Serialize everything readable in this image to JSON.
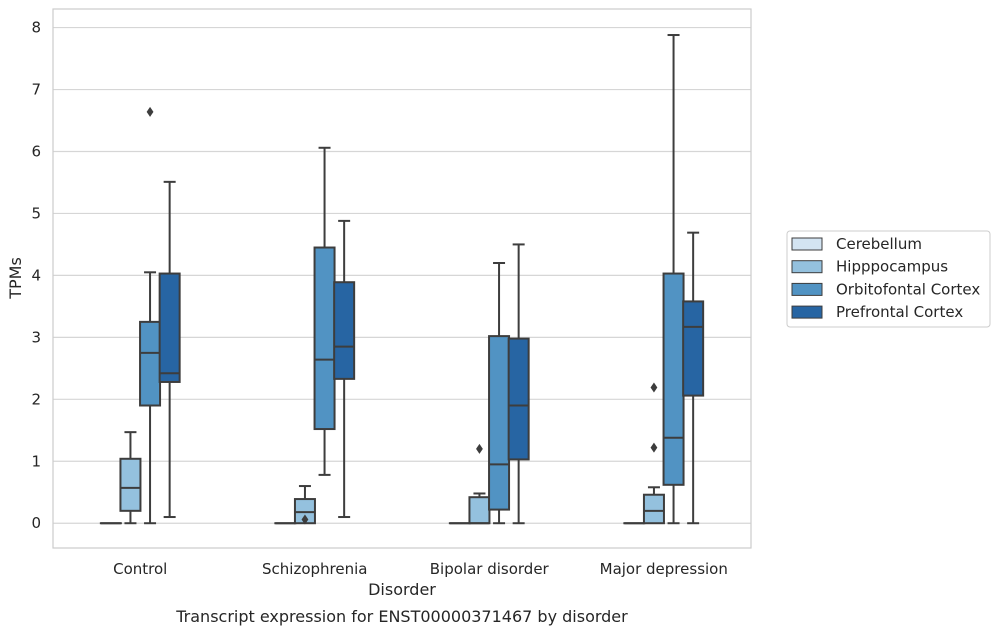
{
  "chart_data": {
    "type": "box",
    "caption": "Transcript expression for ENST00000371467 by disorder",
    "xlabel": "Disorder",
    "ylabel": "TPMs",
    "ylim": [
      -0.4,
      8.3
    ],
    "yticks": [
      0,
      1,
      2,
      3,
      4,
      5,
      6,
      7,
      8
    ],
    "grid": true,
    "legend_position": "right",
    "categories": [
      "Control",
      "Schizophrenia",
      "Bipolar disorder",
      "Major depression"
    ],
    "series": [
      {
        "name": "Cerebellum",
        "color": "#d3e4f2",
        "boxes": [
          {
            "whislo": 0,
            "q1": 0,
            "med": 0,
            "q3": 0,
            "whishi": 0,
            "fliers": []
          },
          {
            "whislo": 0,
            "q1": 0,
            "med": 0,
            "q3": 0,
            "whishi": 0,
            "fliers": []
          },
          {
            "whislo": 0,
            "q1": 0,
            "med": 0,
            "q3": 0,
            "whishi": 0,
            "fliers": []
          },
          {
            "whislo": 0,
            "q1": 0,
            "med": 0,
            "q3": 0,
            "whishi": 0,
            "fliers": []
          }
        ]
      },
      {
        "name": "Hipppocampus",
        "color": "#94c1de",
        "boxes": [
          {
            "whislo": 0,
            "q1": 0.2,
            "med": 0.57,
            "q3": 1.04,
            "whishi": 1.47,
            "fliers": []
          },
          {
            "whislo": 0,
            "q1": 0,
            "med": 0.18,
            "q3": 0.39,
            "whishi": 0.6,
            "fliers": [
              0.06
            ]
          },
          {
            "whislo": 0,
            "q1": 0,
            "med": 0,
            "q3": 0.42,
            "whishi": 0.48,
            "fliers": [
              1.2
            ]
          },
          {
            "whislo": 0,
            "q1": 0,
            "med": 0.2,
            "q3": 0.46,
            "whishi": 0.58,
            "fliers": [
              1.22,
              2.19
            ]
          }
        ]
      },
      {
        "name": "Orbitofontal Cortex",
        "color": "#5193c3",
        "boxes": [
          {
            "whislo": 0,
            "q1": 1.9,
            "med": 2.75,
            "q3": 3.25,
            "whishi": 4.05,
            "fliers": [
              6.64
            ]
          },
          {
            "whislo": 0.78,
            "q1": 1.52,
            "med": 2.64,
            "q3": 4.45,
            "whishi": 6.06,
            "fliers": []
          },
          {
            "whislo": 0,
            "q1": 0.22,
            "med": 0.95,
            "q3": 3.02,
            "whishi": 4.2,
            "fliers": []
          },
          {
            "whislo": 0,
            "q1": 0.62,
            "med": 1.38,
            "q3": 4.03,
            "whishi": 7.88,
            "fliers": []
          }
        ]
      },
      {
        "name": "Prefrontal Cortex",
        "color": "#2765a3",
        "boxes": [
          {
            "whislo": 0.1,
            "q1": 2.28,
            "med": 2.42,
            "q3": 4.03,
            "whishi": 5.51,
            "fliers": []
          },
          {
            "whislo": 0.1,
            "q1": 2.33,
            "med": 2.85,
            "q3": 3.89,
            "whishi": 4.88,
            "fliers": []
          },
          {
            "whislo": 0,
            "q1": 1.03,
            "med": 1.9,
            "q3": 2.98,
            "whishi": 4.5,
            "fliers": []
          },
          {
            "whislo": 0,
            "q1": 2.06,
            "med": 3.17,
            "q3": 3.58,
            "whishi": 4.69,
            "fliers": []
          }
        ]
      }
    ]
  }
}
